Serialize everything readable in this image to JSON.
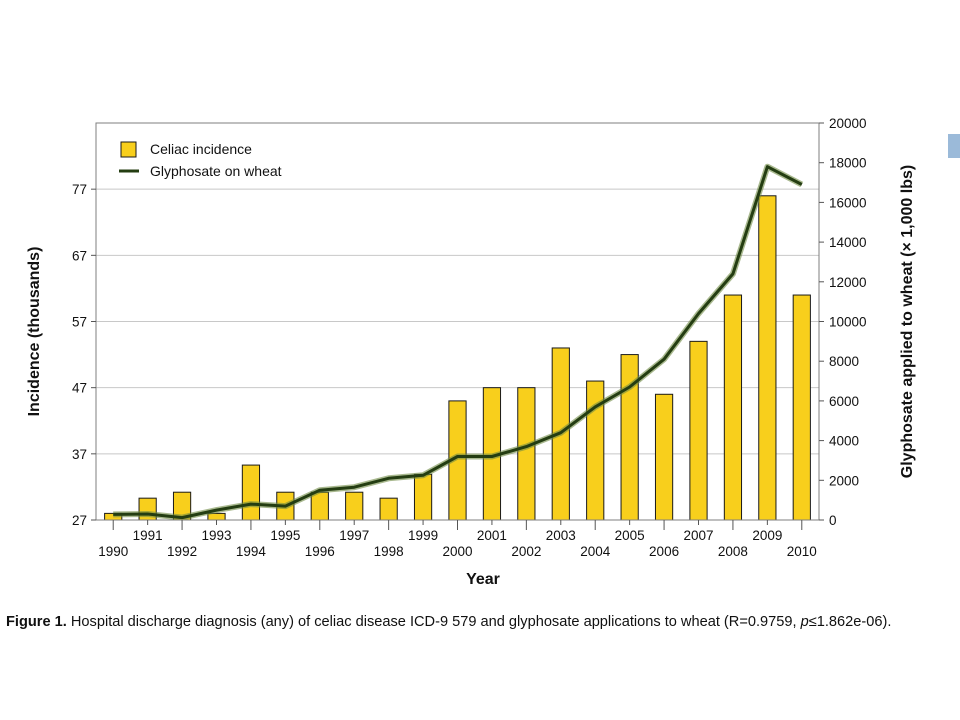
{
  "chart_data": {
    "type": "bar",
    "categories": [
      "1990",
      "1991",
      "1992",
      "1993",
      "1994",
      "1995",
      "1996",
      "1997",
      "1998",
      "1999",
      "2000",
      "2001",
      "2002",
      "2003",
      "2004",
      "2005",
      "2006",
      "2007",
      "2008",
      "2009",
      "2010"
    ],
    "series": [
      {
        "name": "Celiac incidence",
        "type": "bar",
        "axis": "left",
        "values": [
          28,
          30.3,
          31.2,
          28,
          35.3,
          31.2,
          31.2,
          31.2,
          30.3,
          33.9,
          45,
          47,
          47,
          53,
          48,
          52,
          46,
          54,
          61,
          76,
          61
        ]
      },
      {
        "name": "Glyphosate on wheat",
        "type": "line",
        "axis": "right",
        "values": [
          280,
          300,
          120,
          500,
          800,
          700,
          1500,
          1650,
          2100,
          2250,
          3200,
          3200,
          3700,
          4400,
          5700,
          6700,
          8100,
          10400,
          12400,
          17800,
          16900
        ]
      }
    ],
    "xlabel": "Year",
    "ylabel_left": "Incidence (thousands)",
    "ylabel_right": "Glyphosate applied to wheat (× 1,000 lbs)",
    "ylim_left": [
      27,
      87
    ],
    "ylim_right": [
      0,
      20000
    ],
    "yticks_left": [
      "27",
      "37",
      "47",
      "57",
      "67",
      "77"
    ],
    "yticks_right": [
      "0",
      "2000",
      "4000",
      "6000",
      "8000",
      "10000",
      "12000",
      "14000",
      "16000",
      "18000",
      "20000"
    ],
    "legend_position": "top-left",
    "grid": "horizontal",
    "colors": {
      "bar": "#f8cf1c",
      "bar_edge": "#1a1a1a",
      "line": "#243d12",
      "line_glow": "#6f8a45"
    }
  },
  "caption": {
    "label": "Figure 1.",
    "text_before": " Hospital discharge diagnosis (any) of celiac disease ICD-9 579 and glyphosate applications to wheat (R=0.9759, ",
    "p_symbol": "p",
    "text_after": "≤1.862e-06)."
  }
}
